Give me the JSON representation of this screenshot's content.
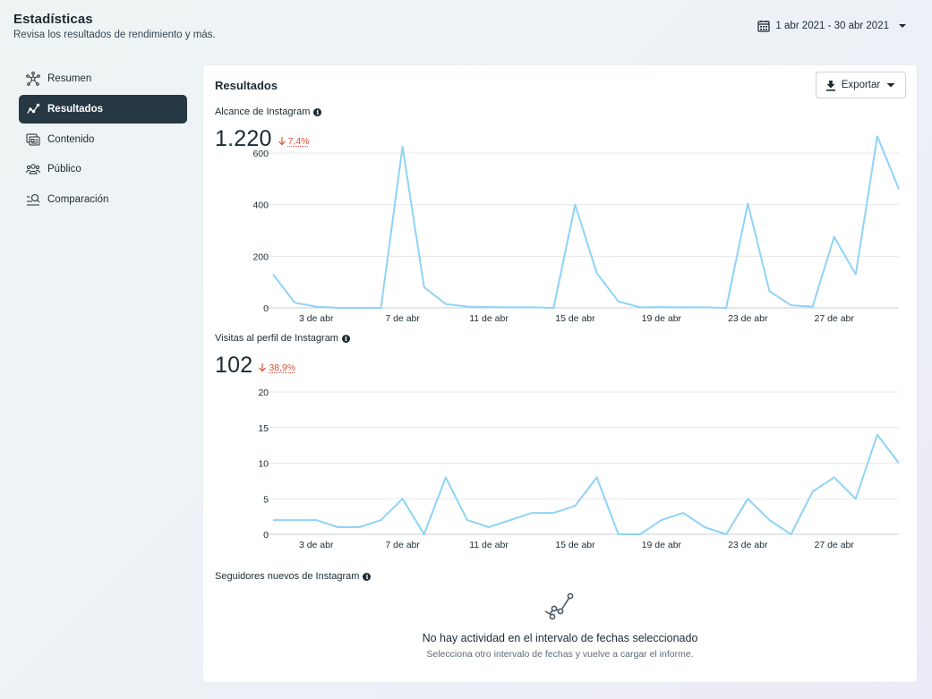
{
  "header": {
    "title": "Estadísticas",
    "subtitle": "Revisa los resultados de rendimiento y más."
  },
  "date_range": {
    "label": "1 abr 2021 - 30 abr 2021",
    "icon": "calendar-icon"
  },
  "sidebar": {
    "items": [
      {
        "label": "Resumen",
        "icon": "network-icon",
        "active": false
      },
      {
        "label": "Resultados",
        "icon": "trend-line-icon",
        "active": true
      },
      {
        "label": "Contenido",
        "icon": "content-stack-icon",
        "active": false
      },
      {
        "label": "Público",
        "icon": "people-icon",
        "active": false
      },
      {
        "label": "Comparación",
        "icon": "compare-search-icon",
        "active": false
      }
    ]
  },
  "card": {
    "title": "Resultados",
    "export_label": "Exportar",
    "reach": {
      "label": "Alcance de Instagram",
      "value": "1.220",
      "change": "7,4%",
      "direction": "down"
    },
    "visits": {
      "label": "Visitas al perfil de Instagram",
      "value": "102",
      "change": "38,9%",
      "direction": "down"
    },
    "followers": {
      "label": "Seguidores nuevos de Instagram",
      "empty_title": "No hay actividad en el intervalo de fechas seleccionado",
      "empty_subtitle": "Selecciona otro intervalo de fechas y vuelve a cargar el informe."
    }
  },
  "colors": {
    "line": "#8fd3f7",
    "active_nav": "#263843",
    "negative": "#e0503a"
  },
  "chart_data": [
    {
      "type": "line",
      "x": [
        1,
        2,
        3,
        4,
        5,
        6,
        7,
        8,
        9,
        10,
        11,
        12,
        13,
        14,
        15,
        16,
        17,
        18,
        19,
        20,
        21,
        22,
        23,
        24,
        25,
        26,
        27,
        28,
        29,
        30
      ],
      "x_tick_labels": {
        "3": "3 de abr",
        "7": "7 de abr",
        "11": "11 de abr",
        "15": "15 de abr",
        "19": "19 de abr",
        "23": "23 de abr",
        "27": "27 de abr"
      },
      "series": [
        {
          "values": [
            130,
            20,
            5,
            0,
            0,
            0,
            625,
            80,
            15,
            5,
            3,
            2,
            2,
            0,
            400,
            135,
            25,
            2,
            3,
            2,
            2,
            0,
            405,
            65,
            10,
            5,
            275,
            130,
            665,
            460
          ]
        }
      ],
      "yticks": [
        0,
        200,
        400,
        600
      ],
      "ylim": [
        0,
        680
      ],
      "grid": true
    },
    {
      "type": "line",
      "x": [
        1,
        2,
        3,
        4,
        5,
        6,
        7,
        8,
        9,
        10,
        11,
        12,
        13,
        14,
        15,
        16,
        17,
        18,
        19,
        20,
        21,
        22,
        23,
        24,
        25,
        26,
        27,
        28,
        29,
        30
      ],
      "x_tick_labels": {
        "3": "3 de abr",
        "7": "7 de abr",
        "11": "11 de abr",
        "15": "15 de abr",
        "19": "19 de abr",
        "23": "23 de abr",
        "27": "27 de abr"
      },
      "series": [
        {
          "values": [
            2,
            2,
            2,
            1,
            1,
            2,
            5,
            0,
            8,
            2,
            1,
            2,
            3,
            3,
            4,
            8,
            0,
            0,
            2,
            3,
            1,
            0,
            5,
            2,
            0,
            6,
            8,
            5,
            14,
            10
          ]
        }
      ],
      "yticks": [
        0,
        5,
        10,
        15,
        20
      ],
      "ylim": [
        0,
        20
      ],
      "grid": true
    }
  ]
}
